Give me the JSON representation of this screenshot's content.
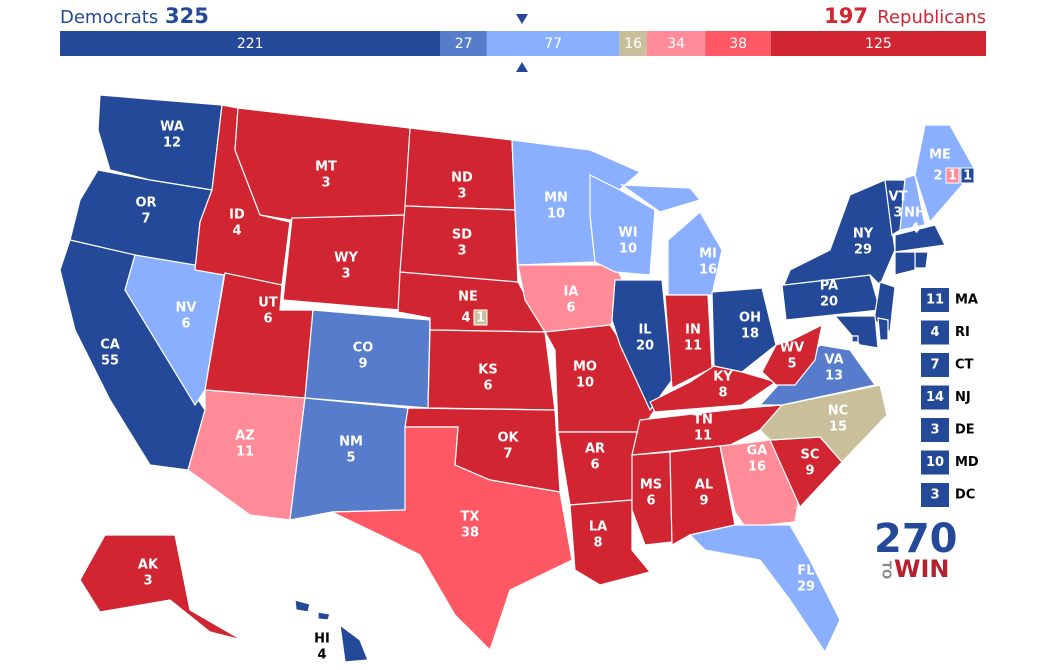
{
  "header": {
    "dem_label": "Democrats",
    "dem_total": 325,
    "dem_color": "#244999",
    "rep_total": 197,
    "rep_label": "Republicans",
    "rep_color": "#d22532"
  },
  "bar": {
    "total": 538,
    "segments": [
      {
        "value": 221,
        "color": "#244999"
      },
      {
        "value": 27,
        "color": "#577ccc"
      },
      {
        "value": 77,
        "color": "#8aafff"
      },
      {
        "value": 16,
        "color": "#c9c09b"
      },
      {
        "value": 34,
        "color": "#ff8b98"
      },
      {
        "value": 38,
        "color": "#ff5865"
      },
      {
        "value": 125,
        "color": "#d22532"
      }
    ]
  },
  "states": [
    {
      "abbr": "WA",
      "ev": 12,
      "color": "#244999"
    },
    {
      "abbr": "OR",
      "ev": 7,
      "color": "#244999"
    },
    {
      "abbr": "CA",
      "ev": 55,
      "color": "#244999"
    },
    {
      "abbr": "NV",
      "ev": 6,
      "color": "#8aafff"
    },
    {
      "abbr": "ID",
      "ev": 4,
      "color": "#d22532"
    },
    {
      "abbr": "MT",
      "ev": 3,
      "color": "#d22532"
    },
    {
      "abbr": "WY",
      "ev": 3,
      "color": "#d22532"
    },
    {
      "abbr": "UT",
      "ev": 6,
      "color": "#d22532"
    },
    {
      "abbr": "AZ",
      "ev": 11,
      "color": "#ff8b98"
    },
    {
      "abbr": "CO",
      "ev": 9,
      "color": "#577ccc"
    },
    {
      "abbr": "NM",
      "ev": 5,
      "color": "#577ccc"
    },
    {
      "abbr": "ND",
      "ev": 3,
      "color": "#d22532"
    },
    {
      "abbr": "SD",
      "ev": 3,
      "color": "#d22532"
    },
    {
      "abbr": "NE",
      "ev": 4,
      "color": "#d22532",
      "districts": [
        {
          "ev": 1,
          "color": "#c9c09b"
        }
      ]
    },
    {
      "abbr": "KS",
      "ev": 6,
      "color": "#d22532"
    },
    {
      "abbr": "OK",
      "ev": 7,
      "color": "#d22532"
    },
    {
      "abbr": "TX",
      "ev": 38,
      "color": "#ff5865"
    },
    {
      "abbr": "MN",
      "ev": 10,
      "color": "#8aafff"
    },
    {
      "abbr": "IA",
      "ev": 6,
      "color": "#ff8b98"
    },
    {
      "abbr": "MO",
      "ev": 10,
      "color": "#d22532"
    },
    {
      "abbr": "AR",
      "ev": 6,
      "color": "#d22532"
    },
    {
      "abbr": "LA",
      "ev": 8,
      "color": "#d22532"
    },
    {
      "abbr": "WI",
      "ev": 10,
      "color": "#8aafff"
    },
    {
      "abbr": "IL",
      "ev": 20,
      "color": "#244999"
    },
    {
      "abbr": "MI",
      "ev": 16,
      "color": "#8aafff"
    },
    {
      "abbr": "IN",
      "ev": 11,
      "color": "#d22532"
    },
    {
      "abbr": "OH",
      "ev": 18,
      "color": "#244999"
    },
    {
      "abbr": "KY",
      "ev": 8,
      "color": "#d22532"
    },
    {
      "abbr": "TN",
      "ev": 11,
      "color": "#d22532"
    },
    {
      "abbr": "MS",
      "ev": 6,
      "color": "#d22532"
    },
    {
      "abbr": "AL",
      "ev": 9,
      "color": "#d22532"
    },
    {
      "abbr": "GA",
      "ev": 16,
      "color": "#ff8b98"
    },
    {
      "abbr": "FL",
      "ev": 29,
      "color": "#8aafff"
    },
    {
      "abbr": "SC",
      "ev": 9,
      "color": "#d22532"
    },
    {
      "abbr": "NC",
      "ev": 15,
      "color": "#c9c09b"
    },
    {
      "abbr": "VA",
      "ev": 13,
      "color": "#577ccc"
    },
    {
      "abbr": "WV",
      "ev": 5,
      "color": "#d22532"
    },
    {
      "abbr": "PA",
      "ev": 20,
      "color": "#244999"
    },
    {
      "abbr": "NY",
      "ev": 29,
      "color": "#244999"
    },
    {
      "abbr": "VT",
      "ev": 3,
      "color": "#244999"
    },
    {
      "abbr": "NH",
      "ev": 4,
      "color": "#8aafff"
    },
    {
      "abbr": "ME",
      "ev": 2,
      "color": "#8aafff",
      "districts": [
        {
          "ev": 1,
          "color": "#ff8b98"
        },
        {
          "ev": 1,
          "color": "#244999"
        }
      ]
    },
    {
      "abbr": "AK",
      "ev": 3,
      "color": "#d22532"
    },
    {
      "abbr": "HI",
      "ev": 4,
      "color": "#244999"
    }
  ],
  "callouts": [
    {
      "abbr": "MA",
      "ev": 11,
      "color": "#244999"
    },
    {
      "abbr": "RI",
      "ev": 4,
      "color": "#244999"
    },
    {
      "abbr": "CT",
      "ev": 7,
      "color": "#244999"
    },
    {
      "abbr": "NJ",
      "ev": 14,
      "color": "#244999"
    },
    {
      "abbr": "DE",
      "ev": 3,
      "color": "#244999"
    },
    {
      "abbr": "MD",
      "ev": 10,
      "color": "#244999"
    },
    {
      "abbr": "DC",
      "ev": 3,
      "color": "#244999"
    }
  ],
  "logo": {
    "number": "270",
    "to": "TO",
    "win": "WIN"
  }
}
